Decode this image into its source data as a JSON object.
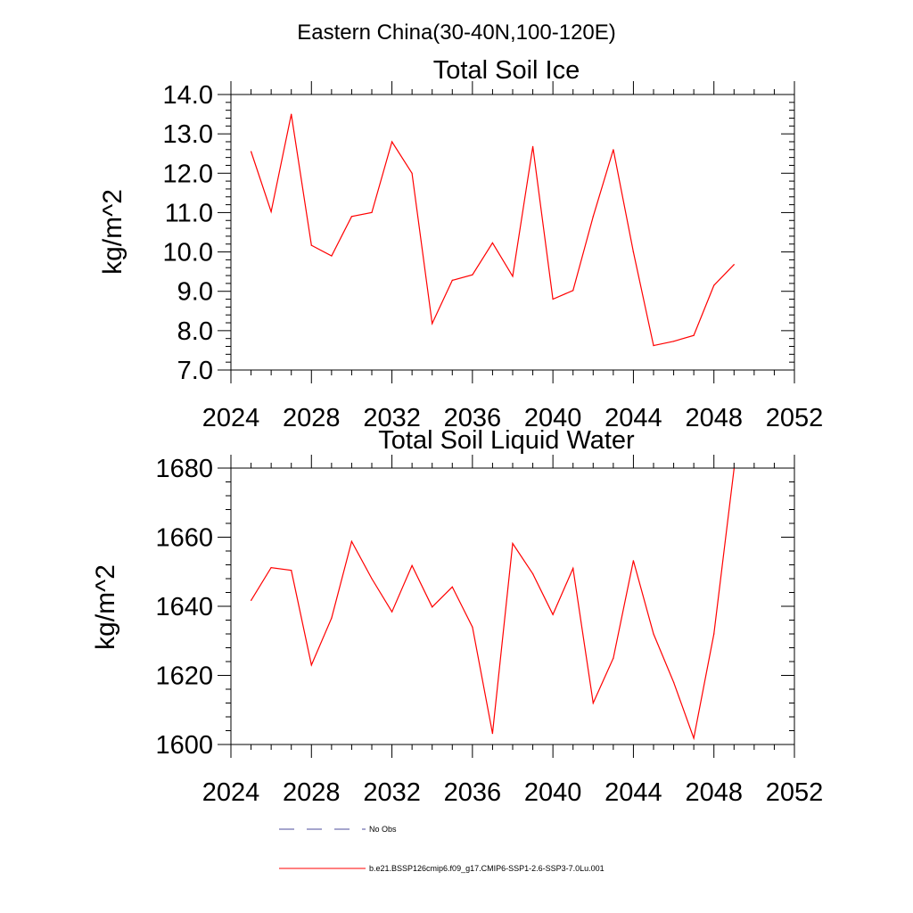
{
  "figure_title": "Eastern China(30-40N,100-120E)",
  "legend": {
    "entries": [
      {
        "label": "No Obs",
        "color": "#4b4b9b",
        "style": "dashed"
      },
      {
        "label": "b.e21.BSSP126cmip6.f09_g17.CMIP6-SSP1-2.6-SSP3-7.0Lu.001",
        "color": "#ff0000",
        "style": "solid"
      }
    ]
  },
  "chart_data": [
    {
      "type": "line",
      "title": "Total Soil Ice",
      "xlabel": "",
      "ylabel": "kg/m^2",
      "xlim": [
        2024,
        2052
      ],
      "ylim": [
        7.0,
        14.0
      ],
      "xticks": [
        2024,
        2028,
        2032,
        2036,
        2040,
        2044,
        2048,
        2052
      ],
      "xtick_labels": [
        "2024",
        "2028",
        "2032",
        "2036",
        "2040",
        "2044",
        "2048",
        "2052"
      ],
      "yticks": [
        7,
        8,
        9,
        10,
        11,
        12,
        13,
        14
      ],
      "ytick_labels": [
        "7.0",
        "8.0",
        "9.0",
        "10.0",
        "11.0",
        "12.0",
        "13.0",
        "14.0"
      ],
      "series": [
        {
          "color": "#ff0000",
          "x": [
            2025,
            2026,
            2027,
            2028,
            2029,
            2030,
            2031,
            2032,
            2033,
            2034,
            2035,
            2036,
            2037,
            2038,
            2039,
            2040,
            2041,
            2042,
            2043,
            2044,
            2045,
            2046,
            2047,
            2048,
            2049
          ],
          "y": [
            12.55,
            11.02,
            13.5,
            10.17,
            9.9,
            10.9,
            11.0,
            12.8,
            12.0,
            8.18,
            9.28,
            9.42,
            10.23,
            9.38,
            12.68,
            8.8,
            9.02,
            10.9,
            12.6,
            10.0,
            7.62,
            7.73,
            7.88,
            9.15,
            9.68
          ]
        }
      ]
    },
    {
      "type": "line",
      "title": "Total Soil Liquid Water",
      "xlabel": "",
      "ylabel": "kg/m^2",
      "xlim": [
        2024,
        2052
      ],
      "ylim": [
        1600,
        1680
      ],
      "xticks": [
        2024,
        2028,
        2032,
        2036,
        2040,
        2044,
        2048,
        2052
      ],
      "xtick_labels": [
        "2024",
        "2028",
        "2032",
        "2036",
        "2040",
        "2044",
        "2048",
        "2052"
      ],
      "yticks": [
        1600,
        1620,
        1640,
        1660,
        1680
      ],
      "ytick_labels": [
        "1600",
        "1620",
        "1640",
        "1660",
        "1680"
      ],
      "series": [
        {
          "color": "#ff0000",
          "x": [
            2025,
            2026,
            2027,
            2028,
            2029,
            2030,
            2031,
            2032,
            2033,
            2034,
            2035,
            2036,
            2037,
            2038,
            2039,
            2040,
            2041,
            2042,
            2043,
            2044,
            2045,
            2046,
            2047,
            2048,
            2049
          ],
          "y": [
            1641.7,
            1651.2,
            1650.4,
            1623.0,
            1636.6,
            1658.8,
            1648.0,
            1638.4,
            1651.8,
            1639.8,
            1645.6,
            1634.0,
            1603.2,
            1658.2,
            1649.4,
            1637.6,
            1651.0,
            1612.0,
            1625.0,
            1653.2,
            1632.0,
            1618.0,
            1601.8,
            1632.0,
            1679.8
          ]
        }
      ]
    }
  ]
}
